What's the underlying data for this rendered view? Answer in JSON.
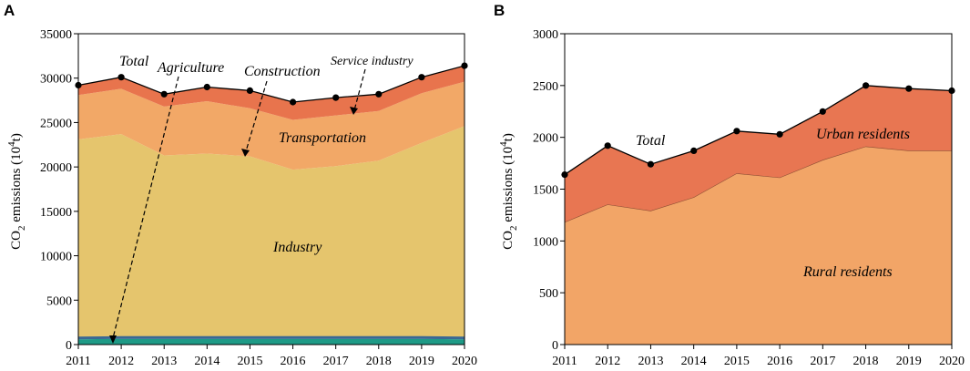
{
  "chart_data": [
    {
      "panel": "A",
      "type": "area",
      "stacked": true,
      "x": [
        2011,
        2012,
        2013,
        2014,
        2015,
        2016,
        2017,
        2018,
        2019,
        2020
      ],
      "xlim": [
        2011,
        2020
      ],
      "ylim": [
        0,
        35000
      ],
      "yticks": [
        0,
        5000,
        10000,
        15000,
        20000,
        25000,
        30000,
        35000
      ],
      "ylabel": {
        "base": "CO",
        "sub": "2",
        "mid": " emissions (10",
        "sup": "4",
        "end": "t)"
      },
      "series": [
        {
          "name": "Agriculture",
          "color": "#1e9a86",
          "values": [
            600,
            650,
            650,
            650,
            650,
            650,
            650,
            650,
            650,
            600
          ]
        },
        {
          "name": "Construction",
          "color": "#3a6894",
          "values": [
            150,
            150,
            150,
            150,
            150,
            150,
            150,
            150,
            150,
            150
          ]
        },
        {
          "name": "Industry",
          "color": "#e5c56d",
          "values": [
            22350,
            22900,
            20500,
            20700,
            20400,
            18900,
            19300,
            19900,
            21900,
            23850
          ]
        },
        {
          "name": "Transportation",
          "color": "#f2a867",
          "values": [
            5000,
            5100,
            5500,
            5900,
            5400,
            5600,
            5700,
            5600,
            5600,
            5000
          ]
        },
        {
          "name": "Service industry",
          "color": "#e8744d",
          "values": [
            1100,
            1300,
            1400,
            1600,
            2000,
            2000,
            2000,
            1900,
            1800,
            1800
          ]
        }
      ],
      "total": {
        "name": "Total",
        "values": [
          29200,
          30100,
          28200,
          29000,
          28600,
          27300,
          27800,
          28200,
          30100,
          31400
        ]
      },
      "annotations": [
        "Total",
        "Agriculture",
        "Construction",
        "Service industry",
        "Transportation",
        "Industry"
      ]
    },
    {
      "panel": "B",
      "type": "area",
      "stacked": true,
      "x": [
        2011,
        2012,
        2013,
        2014,
        2015,
        2016,
        2017,
        2018,
        2019,
        2020
      ],
      "xlim": [
        2011,
        2020
      ],
      "ylim": [
        0,
        3000
      ],
      "yticks": [
        0,
        500,
        1000,
        1500,
        2000,
        2500,
        3000
      ],
      "ylabel": {
        "base": "CO",
        "sub": "2",
        "mid": " emissions (10",
        "sup": "4",
        "end": "t)"
      },
      "series": [
        {
          "name": "Rural residents",
          "color": "#f2a567",
          "values": [
            1180,
            1350,
            1290,
            1420,
            1650,
            1610,
            1780,
            1910,
            1870,
            1870
          ]
        },
        {
          "name": "Urban residents",
          "color": "#e87652",
          "values": [
            460,
            570,
            450,
            450,
            410,
            420,
            470,
            590,
            600,
            580
          ]
        }
      ],
      "total": {
        "name": "Total",
        "values": [
          1640,
          1920,
          1740,
          1870,
          2060,
          2030,
          2250,
          2500,
          2470,
          2450
        ]
      },
      "annotations": [
        "Total",
        "Urban residents",
        "Rural residents"
      ]
    }
  ]
}
